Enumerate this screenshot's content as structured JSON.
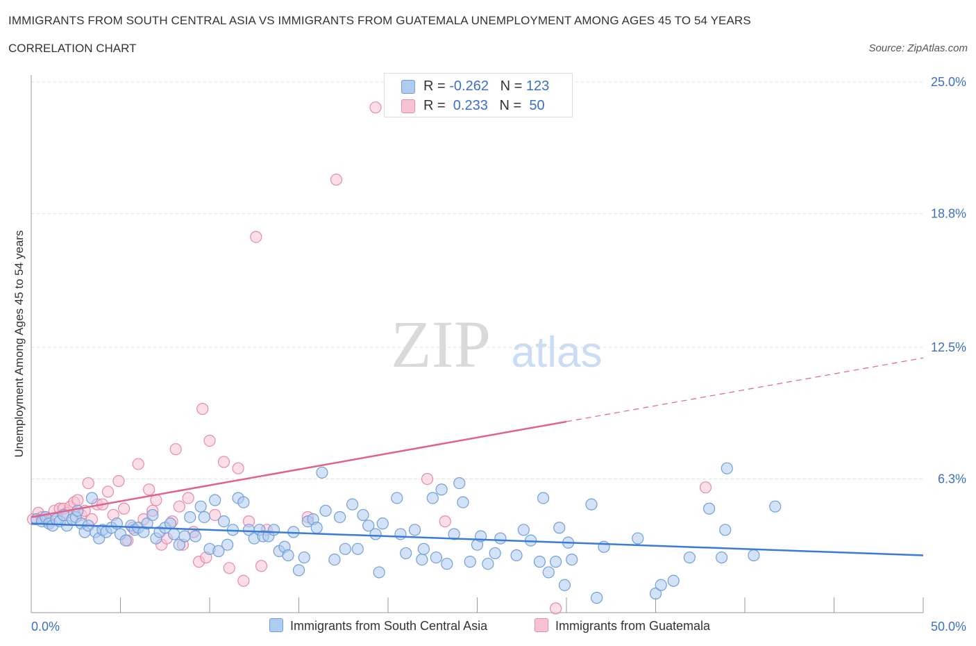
{
  "header": {
    "title": "IMMIGRANTS FROM SOUTH CENTRAL ASIA VS IMMIGRANTS FROM GUATEMALA UNEMPLOYMENT AMONG AGES 45 TO 54 YEARS",
    "subtitle": "CORRELATION CHART",
    "source": "Source: ZipAtlas.com"
  },
  "watermark": {
    "zip": "ZIP",
    "atlas": "atlas"
  },
  "legend": {
    "rows": [
      {
        "r_label": "R = ",
        "r_value": "-0.262",
        "n_label": "N = ",
        "n_value": "123"
      },
      {
        "r_label": "R = ",
        "r_value": " 0.233",
        "n_label": "N = ",
        "n_value": " 50"
      }
    ]
  },
  "colors": {
    "blue_fill": "#aecbf0",
    "blue_stroke": "#6f9fd8",
    "blue_line": "#3a7bd5",
    "pink_fill": "#f7c3d3",
    "pink_stroke": "#e889a7",
    "pink_line": "#e0628c",
    "axis_label": "#3a6fc4",
    "grid": "#dddddd"
  },
  "chart_data": {
    "type": "scatter",
    "title": "IMMIGRANTS FROM SOUTH CENTRAL ASIA VS IMMIGRANTS FROM GUATEMALA UNEMPLOYMENT AMONG AGES 45 TO 54 YEARS",
    "xlabel": "",
    "ylabel": "Unemployment Among Ages 45 to 54 years",
    "xlim": [
      0,
      50
    ],
    "ylim": [
      0,
      25
    ],
    "x_tick_labels": [
      "0.0%",
      "50.0%"
    ],
    "y_ticks": [
      6.3,
      12.5,
      18.8,
      25.0
    ],
    "y_tick_labels": [
      "6.3%",
      "12.5%",
      "18.8%",
      "25.0%"
    ],
    "grid": true,
    "legend_position": "top-center",
    "series": [
      {
        "name": "Immigrants from South Central Asia",
        "color": "blue",
        "R": -0.262,
        "N": 123,
        "trend": {
          "x": [
            0,
            50
          ],
          "y": [
            4.2,
            2.7
          ],
          "solid_until": 50
        },
        "points": [
          [
            0.3,
            4.4
          ],
          [
            0.6,
            4.3
          ],
          [
            0.8,
            4.5
          ],
          [
            1.0,
            4.2
          ],
          [
            1.2,
            4.1
          ],
          [
            1.4,
            4.4
          ],
          [
            1.6,
            4.3
          ],
          [
            1.8,
            4.6
          ],
          [
            2.0,
            4.1
          ],
          [
            2.3,
            4.4
          ],
          [
            2.5,
            4.5
          ],
          [
            2.6,
            4.8
          ],
          [
            2.8,
            4.2
          ],
          [
            3.0,
            3.8
          ],
          [
            3.2,
            4.1
          ],
          [
            3.4,
            5.4
          ],
          [
            3.6,
            3.8
          ],
          [
            3.8,
            3.5
          ],
          [
            4.0,
            3.9
          ],
          [
            4.2,
            3.8
          ],
          [
            4.5,
            4.0
          ],
          [
            4.8,
            4.2
          ],
          [
            5.0,
            3.7
          ],
          [
            5.3,
            3.4
          ],
          [
            5.6,
            4.1
          ],
          [
            5.8,
            3.9
          ],
          [
            6.0,
            4.0
          ],
          [
            6.3,
            3.8
          ],
          [
            6.5,
            4.2
          ],
          [
            6.8,
            4.6
          ],
          [
            7.0,
            3.5
          ],
          [
            7.2,
            3.8
          ],
          [
            7.5,
            4.0
          ],
          [
            7.8,
            4.2
          ],
          [
            8.0,
            3.7
          ],
          [
            8.3,
            3.2
          ],
          [
            8.6,
            3.6
          ],
          [
            8.9,
            4.5
          ],
          [
            9.2,
            3.6
          ],
          [
            9.5,
            5.0
          ],
          [
            9.7,
            4.5
          ],
          [
            10.0,
            3.0
          ],
          [
            10.3,
            5.3
          ],
          [
            10.5,
            2.9
          ],
          [
            10.8,
            4.3
          ],
          [
            11.0,
            3.2
          ],
          [
            11.3,
            3.9
          ],
          [
            11.6,
            5.4
          ],
          [
            11.9,
            5.2
          ],
          [
            12.2,
            3.9
          ],
          [
            12.5,
            3.5
          ],
          [
            12.8,
            3.9
          ],
          [
            13.0,
            3.6
          ],
          [
            13.3,
            3.6
          ],
          [
            13.6,
            3.9
          ],
          [
            13.9,
            2.9
          ],
          [
            14.2,
            3.1
          ],
          [
            14.4,
            2.7
          ],
          [
            14.7,
            3.8
          ],
          [
            15.0,
            2.0
          ],
          [
            15.3,
            2.6
          ],
          [
            15.5,
            4.3
          ],
          [
            15.8,
            4.4
          ],
          [
            16.0,
            4.0
          ],
          [
            16.3,
            6.6
          ],
          [
            16.5,
            4.8
          ],
          [
            17.0,
            2.5
          ],
          [
            17.3,
            4.5
          ],
          [
            17.6,
            3.0
          ],
          [
            18.0,
            5.1
          ],
          [
            18.3,
            3.0
          ],
          [
            18.6,
            4.6
          ],
          [
            18.9,
            4.1
          ],
          [
            19.3,
            3.7
          ],
          [
            19.5,
            1.9
          ],
          [
            19.7,
            4.2
          ],
          [
            20.5,
            5.4
          ],
          [
            20.7,
            3.7
          ],
          [
            21.0,
            2.8
          ],
          [
            21.5,
            3.9
          ],
          [
            21.9,
            2.5
          ],
          [
            22.0,
            3.0
          ],
          [
            22.5,
            5.4
          ],
          [
            22.7,
            2.6
          ],
          [
            23.0,
            5.8
          ],
          [
            23.3,
            2.3
          ],
          [
            23.7,
            3.7
          ],
          [
            24.0,
            6.1
          ],
          [
            24.2,
            5.2
          ],
          [
            24.6,
            2.4
          ],
          [
            25.0,
            3.2
          ],
          [
            25.2,
            3.6
          ],
          [
            25.6,
            2.3
          ],
          [
            26.0,
            2.8
          ],
          [
            26.3,
            3.5
          ],
          [
            27.2,
            2.7
          ],
          [
            27.6,
            3.9
          ],
          [
            28.0,
            3.4
          ],
          [
            28.5,
            2.4
          ],
          [
            28.7,
            5.4
          ],
          [
            29.0,
            1.9
          ],
          [
            29.4,
            2.4
          ],
          [
            29.6,
            4.0
          ],
          [
            29.9,
            1.3
          ],
          [
            30.1,
            3.3
          ],
          [
            30.3,
            2.5
          ],
          [
            31.4,
            5.1
          ],
          [
            31.7,
            0.7
          ],
          [
            32.1,
            3.1
          ],
          [
            34.0,
            3.5
          ],
          [
            35.0,
            0.9
          ],
          [
            35.3,
            1.3
          ],
          [
            36.0,
            1.5
          ],
          [
            36.9,
            2.6
          ],
          [
            38.0,
            4.9
          ],
          [
            38.7,
            2.6
          ],
          [
            38.9,
            3.9
          ],
          [
            39.0,
            6.8
          ],
          [
            40.5,
            2.7
          ],
          [
            41.7,
            5.0
          ]
        ]
      },
      {
        "name": "Immigrants from Guatemala",
        "color": "pink",
        "R": 0.233,
        "N": 50,
        "trend": {
          "x": [
            0,
            50
          ],
          "y": [
            4.5,
            12.0
          ],
          "solid_until": 30
        },
        "points": [
          [
            0.1,
            4.4
          ],
          [
            0.4,
            4.7
          ],
          [
            0.6,
            4.5
          ],
          [
            0.8,
            4.5
          ],
          [
            1.0,
            4.3
          ],
          [
            1.3,
            4.8
          ],
          [
            1.6,
            4.9
          ],
          [
            1.8,
            4.9
          ],
          [
            2.0,
            4.7
          ],
          [
            2.2,
            5.0
          ],
          [
            2.4,
            5.2
          ],
          [
            2.6,
            5.3
          ],
          [
            2.8,
            4.6
          ],
          [
            3.0,
            4.8
          ],
          [
            3.2,
            6.1
          ],
          [
            3.4,
            4.4
          ],
          [
            3.7,
            5.1
          ],
          [
            4.0,
            5.1
          ],
          [
            4.3,
            5.7
          ],
          [
            4.6,
            4.6
          ],
          [
            4.9,
            6.2
          ],
          [
            5.2,
            4.9
          ],
          [
            5.4,
            3.4
          ],
          [
            5.7,
            4.0
          ],
          [
            6.0,
            7.0
          ],
          [
            6.3,
            4.4
          ],
          [
            6.6,
            5.8
          ],
          [
            6.8,
            4.8
          ],
          [
            7.0,
            5.3
          ],
          [
            7.3,
            3.2
          ],
          [
            7.6,
            3.5
          ],
          [
            7.9,
            4.3
          ],
          [
            8.1,
            7.7
          ],
          [
            8.3,
            5.0
          ],
          [
            8.5,
            3.2
          ],
          [
            8.8,
            5.4
          ],
          [
            9.1,
            3.8
          ],
          [
            9.4,
            2.4
          ],
          [
            9.6,
            9.6
          ],
          [
            9.8,
            2.6
          ],
          [
            10.0,
            8.1
          ],
          [
            10.3,
            4.6
          ],
          [
            10.8,
            7.1
          ],
          [
            11.1,
            2.1
          ],
          [
            11.6,
            6.8
          ],
          [
            11.9,
            1.5
          ],
          [
            12.2,
            4.3
          ],
          [
            12.6,
            17.7
          ],
          [
            12.9,
            2.2
          ],
          [
            13.2,
            3.9
          ]
        ]
      }
    ],
    "extra_points_pink": [
      [
        15.5,
        4.5
      ],
      [
        17.1,
        20.4
      ],
      [
        19.3,
        23.8
      ],
      [
        22.2,
        6.3
      ],
      [
        23.2,
        4.3
      ],
      [
        29.4,
        0.2
      ],
      [
        37.8,
        5.9
      ]
    ]
  },
  "bottom_legend": {
    "blue_label": "Immigrants from South Central Asia",
    "pink_label": "Immigrants from Guatemala"
  }
}
